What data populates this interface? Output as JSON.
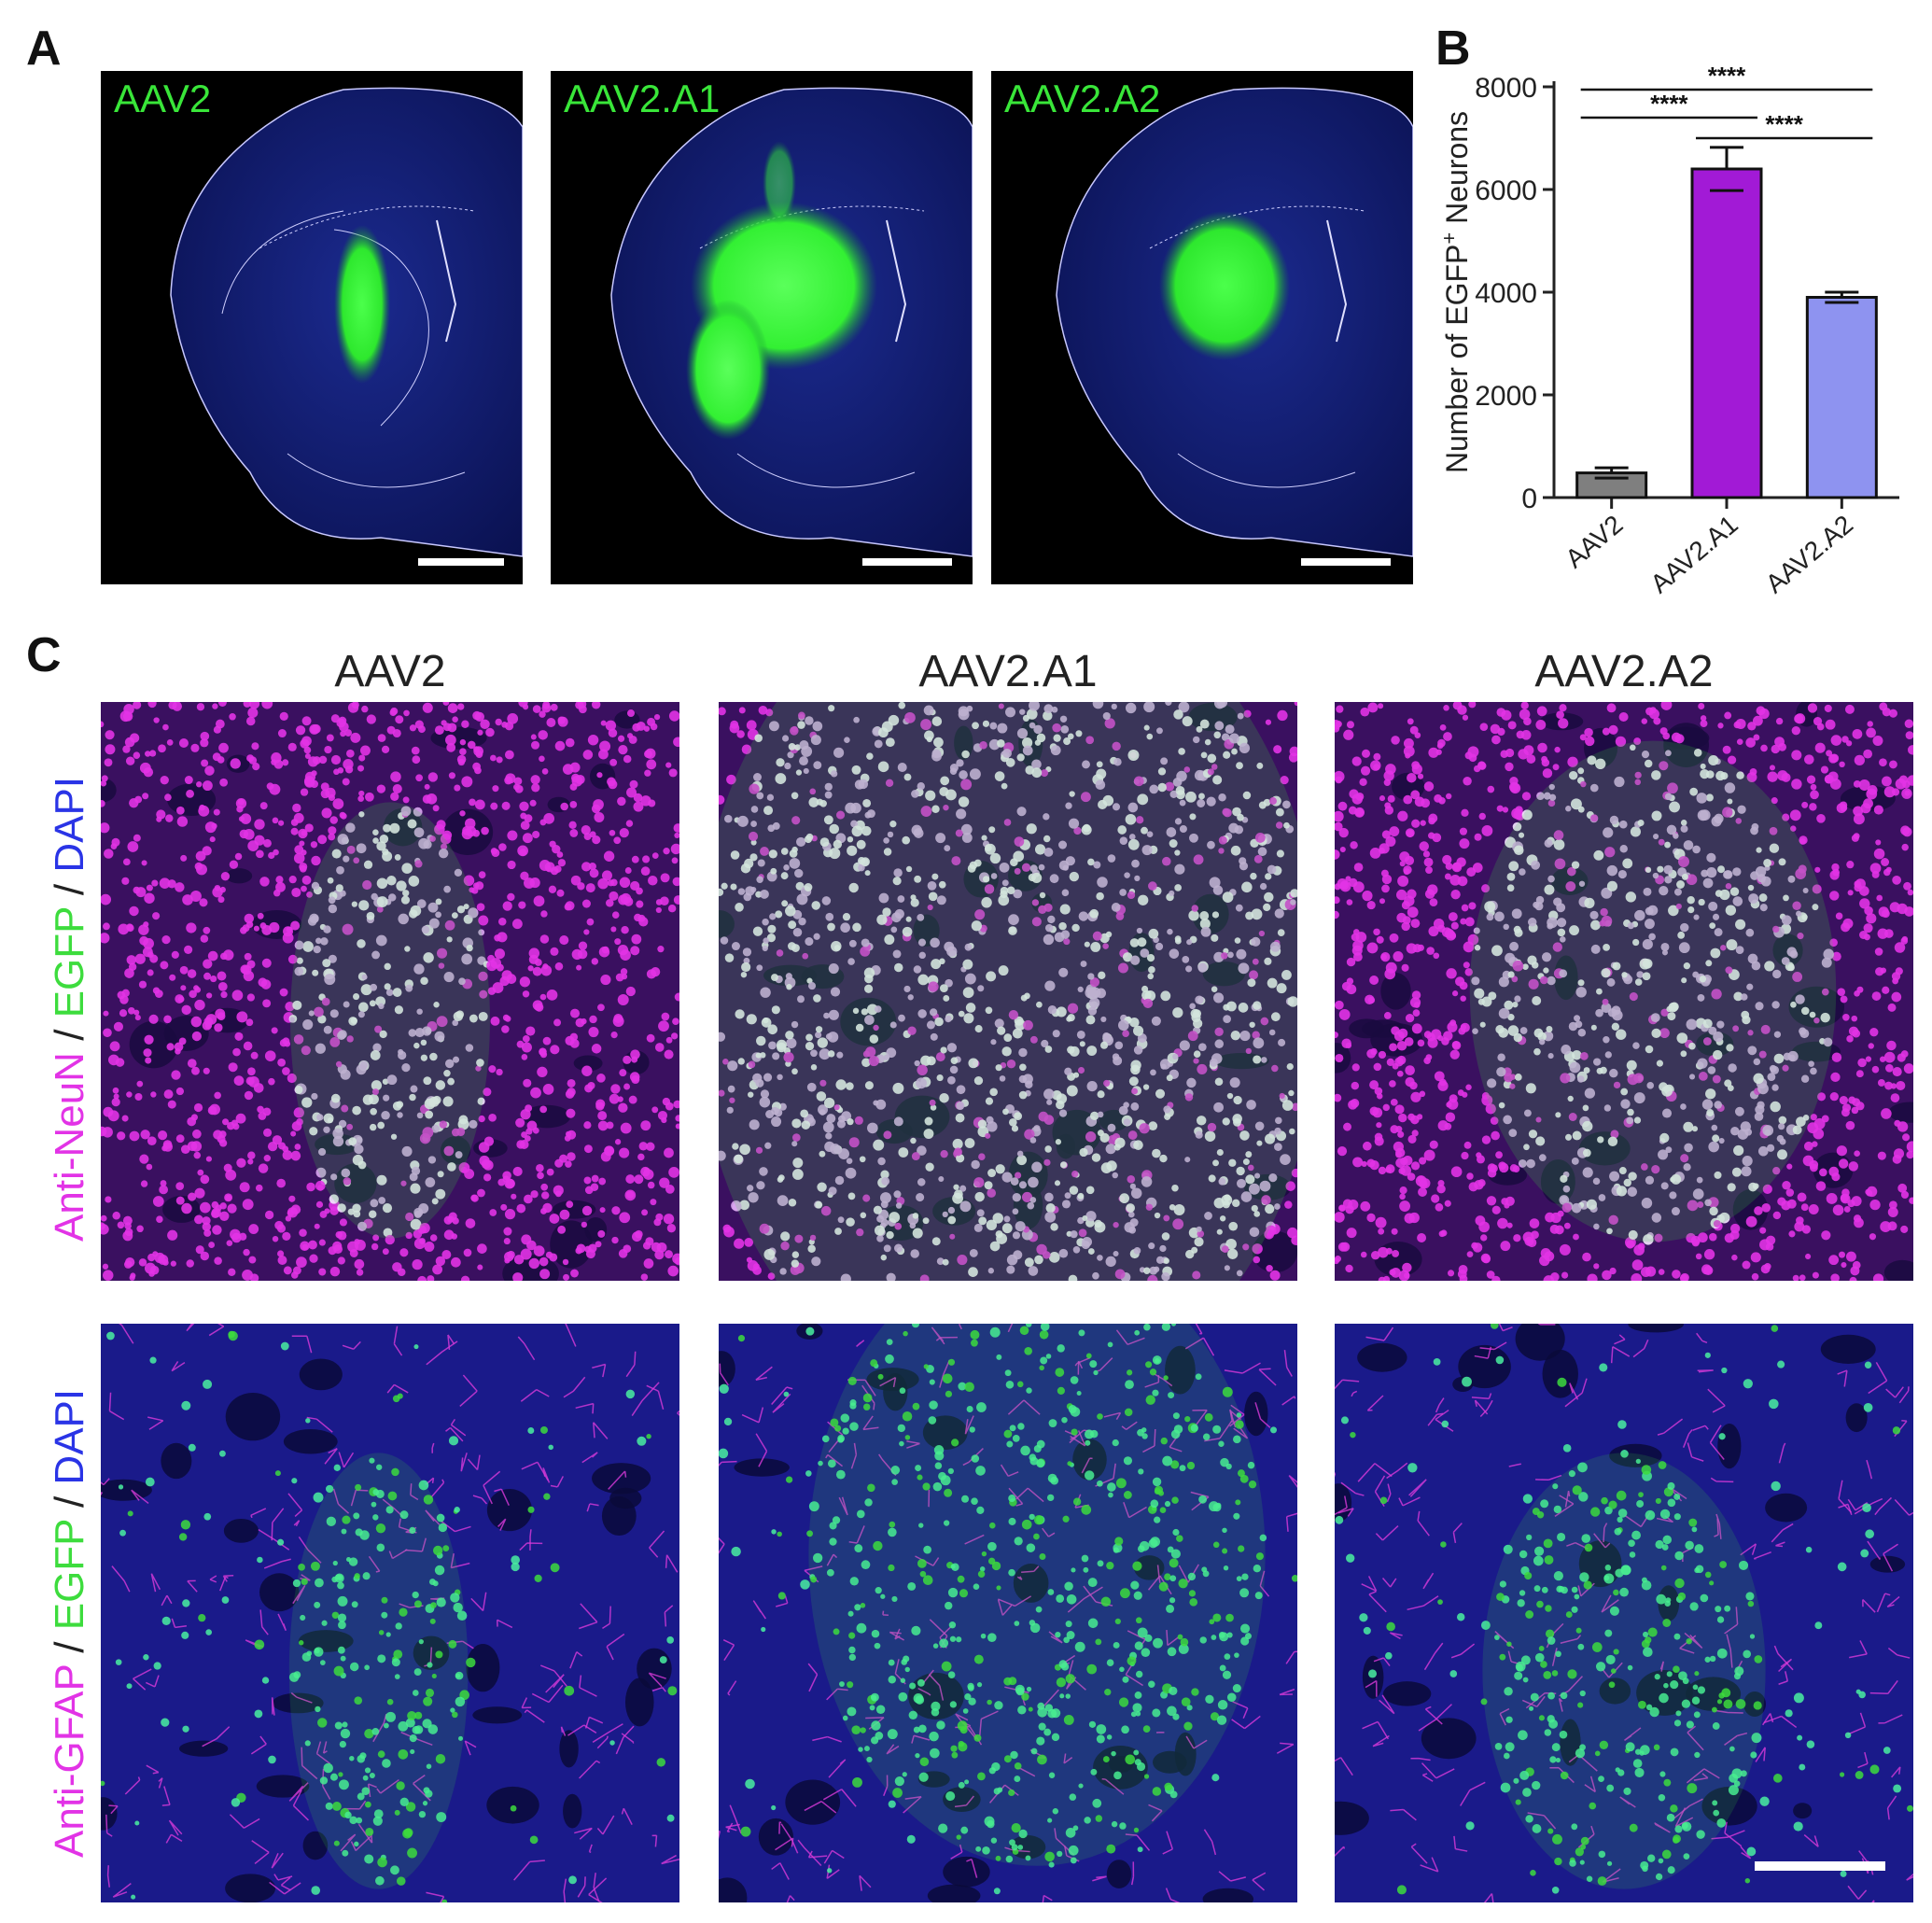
{
  "panels": {
    "A": {
      "letter": "A",
      "sections": [
        {
          "label": "AAV2"
        },
        {
          "label": "AAV2.A1"
        },
        {
          "label": "AAV2.A2"
        }
      ]
    },
    "B": {
      "letter": "B"
    },
    "C": {
      "letter": "C",
      "column_titles": [
        "AAV2",
        "AAV2.A1",
        "AAV2.A2"
      ],
      "row_labels": [
        {
          "marker": "Anti-NeuN",
          "sep1": " / ",
          "egfp": "EGFP",
          "sep2": " / ",
          "dapi": "DAPI"
        },
        {
          "marker": "Anti-GFAP",
          "sep1": " / ",
          "egfp": "EGFP",
          "sep2": " / ",
          "dapi": "DAPI"
        }
      ]
    }
  },
  "colors": {
    "magenta": "#e233e6",
    "green": "#3ddc3d",
    "blue": "#2a34e6",
    "bar_aav2": "#7f7f7f",
    "bar_a1": "#a21ad6",
    "bar_a2": "#8e93f0"
  },
  "chart_data": {
    "type": "bar",
    "categories": [
      "AAV2",
      "AAV2.A1",
      "AAV2.A2"
    ],
    "values": [
      480,
      6400,
      3900
    ],
    "errors": [
      100,
      420,
      100
    ],
    "ylabel_prefix": "Number of EGFP",
    "ylabel_sup": "+",
    "ylabel_suffix": " Neurons",
    "ylim": [
      0,
      8000
    ],
    "yticks": [
      "0",
      "2000",
      "4000",
      "6000",
      "8000"
    ],
    "significance": [
      {
        "from": 0,
        "to": 2,
        "label": "****"
      },
      {
        "from": 0,
        "to": 1,
        "label": "****"
      },
      {
        "from": 1,
        "to": 2,
        "label": "****"
      }
    ]
  }
}
